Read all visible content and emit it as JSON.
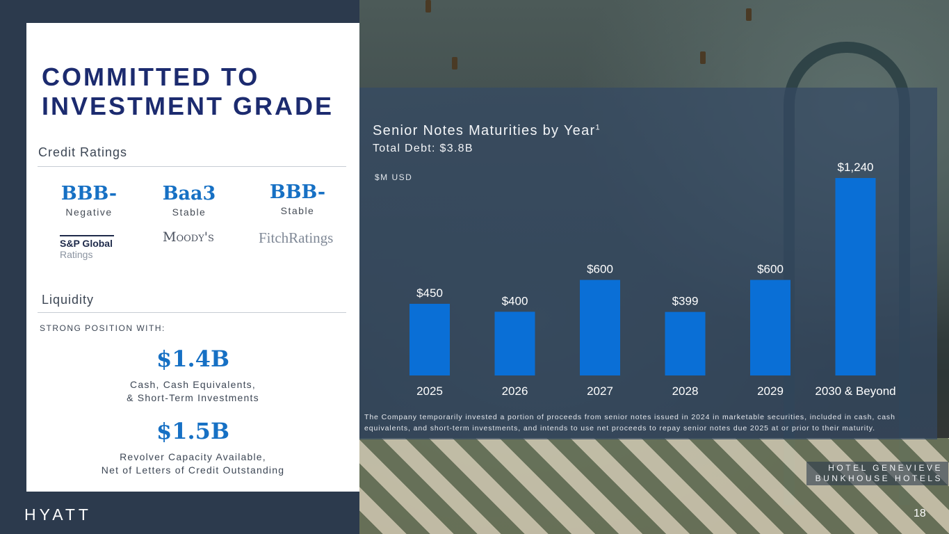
{
  "title": "COMMITTED TO\nINVESTMENT GRADE",
  "credit_ratings": {
    "heading": "Credit Ratings",
    "agencies": [
      {
        "grade": "BBB-",
        "outlook": "Negative",
        "logo_line1": "S&P Global",
        "logo_line2": "Ratings"
      },
      {
        "grade": "Baa3",
        "outlook": "Stable",
        "logo": "Moody's"
      },
      {
        "grade": "BBB-",
        "outlook": "Stable",
        "logo": "FitchRatings"
      }
    ]
  },
  "liquidity": {
    "heading": "Liquidity",
    "intro": "STRONG POSITION WITH:",
    "items": [
      {
        "amount": "$1.4B",
        "desc_line1": "Cash, Cash Equivalents,",
        "desc_line2": "& Short-Term Investments"
      },
      {
        "amount": "$1.5B",
        "desc_line1": "Revolver Capacity Available,",
        "desc_line2": "Net of Letters of Credit Outstanding"
      }
    ]
  },
  "chart_data": {
    "type": "bar",
    "title": "Senior Notes Maturities by Year",
    "title_footnote_mark": "1",
    "subtitle": "Total Debt: $3.8B",
    "ylabel": "$M USD",
    "categories": [
      "2025",
      "2026",
      "2027",
      "2028",
      "2029",
      "2030 & Beyond"
    ],
    "values": [
      450,
      400,
      600,
      399,
      600,
      1240
    ],
    "data_labels": [
      "$450",
      "$400",
      "$600",
      "$399",
      "$600",
      "$1,240"
    ],
    "ylim": [
      0,
      1240
    ],
    "bar_color": "#0a6fd6",
    "grid": false
  },
  "footnote": "The Company temporarily invested a portion of proceeds from senior notes issued in 2024 in marketable securities, included in cash, cash equivalents, and short-term investments, and intends to use net proceeds to repay senior notes due 2025 at or prior to their maturity.",
  "photo_credit": {
    "line1": "HOTEL GENEVIEVE",
    "line2": "BUNKHOUSE HOTELS"
  },
  "brand": "HYATT",
  "page_number": "18"
}
